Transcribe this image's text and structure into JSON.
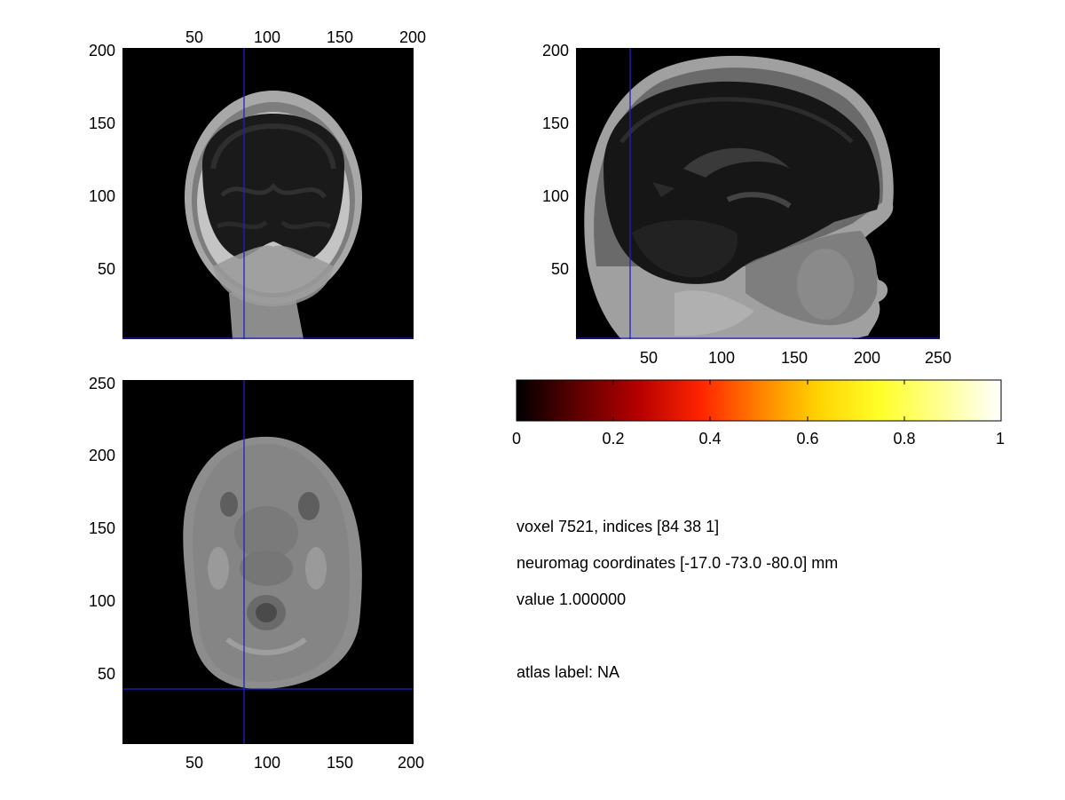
{
  "colors": {
    "background": "#ffffff",
    "panel_background": "#000000",
    "crosshair": "#2020c8",
    "colormap": [
      "#000000",
      "#5a0000",
      "#b40000",
      "#ff2400",
      "#ff8000",
      "#ffd200",
      "#ffff28",
      "#ffff96",
      "#ffffff"
    ]
  },
  "panels": {
    "coronal": {
      "icon": "coronal-head-slice",
      "xticks": [
        "50",
        "100",
        "150",
        "200"
      ],
      "yticks": [
        "200",
        "150",
        "100",
        "50"
      ]
    },
    "sagittal": {
      "icon": "sagittal-head-slice",
      "xticks": [
        "50",
        "100",
        "150",
        "200",
        "250"
      ],
      "yticks": [
        "200",
        "150",
        "100",
        "50"
      ]
    },
    "axial": {
      "icon": "axial-head-slice",
      "xticks": [
        "50",
        "100",
        "150",
        "200"
      ],
      "yticks": [
        "250",
        "200",
        "150",
        "100",
        "50"
      ]
    }
  },
  "colorbar": {
    "ticks": [
      "0",
      "0.2",
      "0.4",
      "0.6",
      "0.8",
      "1"
    ]
  },
  "info": {
    "voxel": "voxel 7521, indices [84 38 1]",
    "coordinates": "neuromag coordinates [-17.0 -73.0 -80.0] mm",
    "value": "value 1.000000",
    "atlas": "atlas label: NA"
  }
}
